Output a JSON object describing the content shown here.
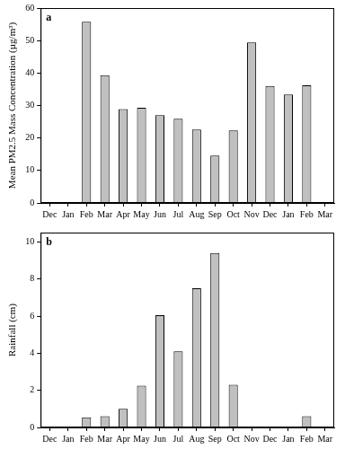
{
  "chart_data": [
    {
      "type": "bar",
      "annotation": "a",
      "y_label": "Mean PM2.5 Mass Concentration (µg/m³)",
      "categories": [
        "Dec",
        "Jan",
        "Feb",
        "Mar",
        "Apr",
        "May",
        "Jun",
        "Jul",
        "Aug",
        "Sep",
        "Oct",
        "Nov",
        "Dec",
        "Jan",
        "Feb",
        "Mar"
      ],
      "values": [
        null,
        null,
        55.8,
        39.3,
        28.9,
        29.3,
        27.0,
        25.9,
        22.6,
        14.6,
        22.3,
        49.4,
        36.0,
        33.4,
        36.2,
        null
      ],
      "color": "#c0c0c0",
      "ylim": [
        0,
        60
      ],
      "yticks": [
        0,
        10,
        20,
        30,
        40,
        50,
        60
      ],
      "grid": false
    },
    {
      "type": "bar",
      "annotation": "b",
      "y_label": "Rainfall (cm)",
      "categories": [
        "Dec",
        "Jan",
        "Feb",
        "Mar",
        "Apr",
        "May",
        "Jun",
        "Jul",
        "Aug",
        "Sep",
        "Oct",
        "Nov",
        "Dec",
        "Jan",
        "Feb",
        "Mar"
      ],
      "values": [
        null,
        null,
        0.55,
        0.6,
        1.0,
        2.25,
        6.05,
        4.1,
        7.5,
        9.4,
        2.3,
        null,
        null,
        null,
        0.6,
        null
      ],
      "color": "#c0c0c0",
      "ylim": [
        0,
        10.5
      ],
      "yticks": [
        0,
        2,
        4,
        6,
        8,
        10
      ],
      "grid": false
    }
  ]
}
